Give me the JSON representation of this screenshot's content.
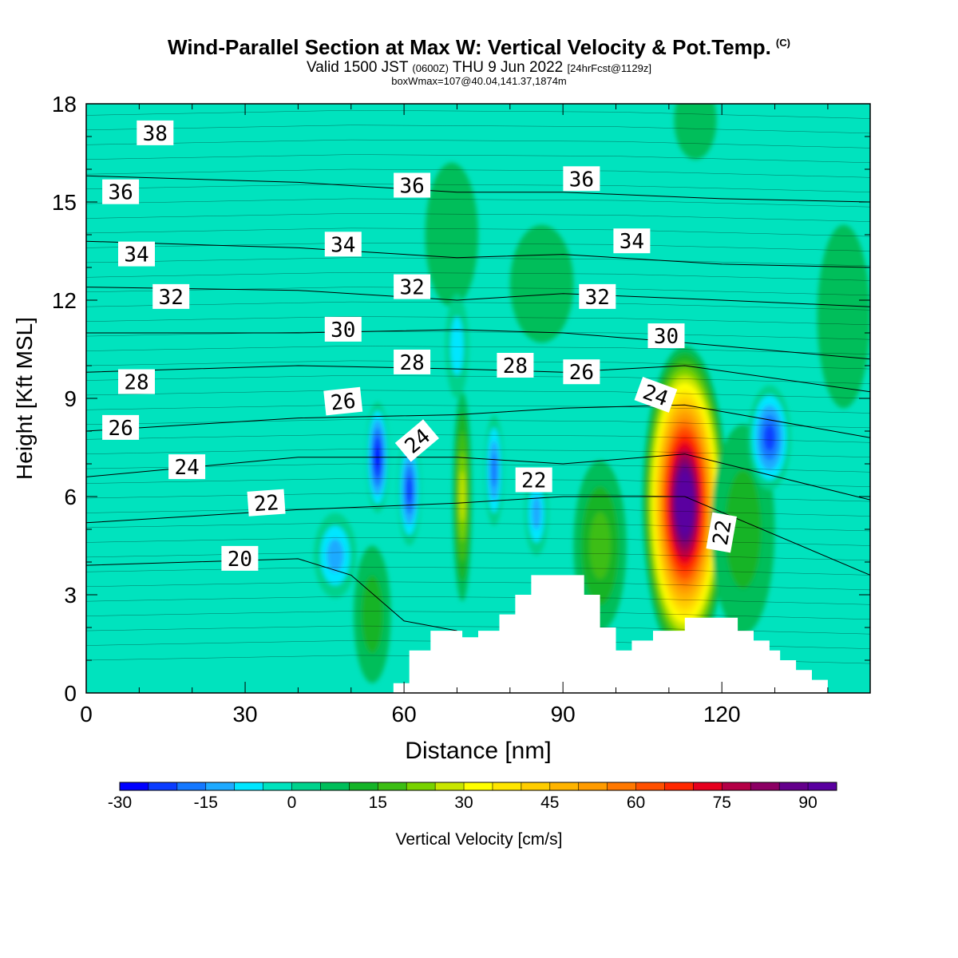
{
  "header": {
    "title": "Wind-Parallel Section at Max W: Vertical Velocity & Pot.Temp.",
    "copyright": "(C)",
    "valid_prefix": "Valid 1500 JST",
    "valid_utc": "(0600Z)",
    "valid_date": "THU 9 Jun 2022",
    "forecast": "[24hrFcst@1129z]",
    "boxmax": "boxWmax=107@40.04,141.37,1874m"
  },
  "colors": {
    "background": "#00e3be",
    "terrain": "#ffffff",
    "contour": "#000000"
  },
  "chart_data": {
    "type": "heatmap",
    "xlabel": "Distance [nm]",
    "ylabel": "Height [Kft MSL]",
    "xlim": [
      0,
      148
    ],
    "ylim": [
      0,
      18
    ],
    "x_ticks": [
      0,
      30,
      60,
      90,
      120
    ],
    "y_ticks": [
      0,
      3,
      6,
      9,
      12,
      15,
      18
    ],
    "colorbar": {
      "label": "Vertical Velocity [cm/s]",
      "tick_values": [
        -30,
        -15,
        0,
        15,
        30,
        45,
        60,
        75,
        90
      ],
      "min": -30,
      "max": 95,
      "step": 5,
      "colors": [
        "#0000ff",
        "#0a3cff",
        "#1478ff",
        "#1eaaff",
        "#00e6ff",
        "#00e3be",
        "#00d28c",
        "#00be5a",
        "#14b428",
        "#3cbe14",
        "#78d200",
        "#c8e600",
        "#ffff00",
        "#ffe600",
        "#ffcd00",
        "#ffb400",
        "#ff9b00",
        "#ff7800",
        "#ff5000",
        "#ff2800",
        "#e6001e",
        "#b40046",
        "#8c0064",
        "#64008c",
        "#5a00a0"
      ]
    },
    "terrain_profile": [
      [
        0,
        0
      ],
      [
        58,
        0
      ],
      [
        58,
        0.3
      ],
      [
        61,
        0.3
      ],
      [
        61,
        1.3
      ],
      [
        65,
        1.3
      ],
      [
        65,
        1.9
      ],
      [
        71,
        1.9
      ],
      [
        71,
        1.7
      ],
      [
        74,
        1.7
      ],
      [
        74,
        1.9
      ],
      [
        78,
        1.9
      ],
      [
        78,
        2.4
      ],
      [
        81,
        2.4
      ],
      [
        81,
        3.0
      ],
      [
        84,
        3.0
      ],
      [
        84,
        3.6
      ],
      [
        94,
        3.6
      ],
      [
        94,
        3.0
      ],
      [
        97,
        3.0
      ],
      [
        97,
        2.0
      ],
      [
        100,
        2.0
      ],
      [
        100,
        1.3
      ],
      [
        103,
        1.3
      ],
      [
        103,
        1.6
      ],
      [
        107,
        1.6
      ],
      [
        107,
        1.9
      ],
      [
        113,
        1.9
      ],
      [
        113,
        2.3
      ],
      [
        123,
        2.3
      ],
      [
        123,
        1.9
      ],
      [
        126,
        1.9
      ],
      [
        126,
        1.6
      ],
      [
        129,
        1.6
      ],
      [
        129,
        1.3
      ],
      [
        131,
        1.3
      ],
      [
        131,
        1.0
      ],
      [
        134,
        1.0
      ],
      [
        134,
        0.7
      ],
      [
        137,
        0.7
      ],
      [
        137,
        0.4
      ],
      [
        140,
        0.4
      ],
      [
        140,
        0.0
      ],
      [
        148,
        0
      ]
    ],
    "w_features": [
      {
        "x": 113,
        "y": 5.8,
        "rx": 8,
        "ry": 4.8,
        "value": 107
      },
      {
        "x": 71,
        "y": 6.0,
        "rx": 1.8,
        "ry": 3.2,
        "value": 25
      },
      {
        "x": 97,
        "y": 4.5,
        "rx": 5,
        "ry": 2.6,
        "value": 15
      },
      {
        "x": 54,
        "y": 2.4,
        "rx": 3.5,
        "ry": 2.1,
        "value": 13
      },
      {
        "x": 124,
        "y": 5.0,
        "rx": 6,
        "ry": 3.2,
        "value": 10
      },
      {
        "x": 86,
        "y": 12.5,
        "rx": 6,
        "ry": 1.8,
        "value": 5
      },
      {
        "x": 143,
        "y": 11.5,
        "rx": 5,
        "ry": 2.8,
        "value": 5
      },
      {
        "x": 69,
        "y": 14.0,
        "rx": 5,
        "ry": 2.2,
        "value": 5
      },
      {
        "x": 115,
        "y": 17.5,
        "rx": 4,
        "ry": 1.2,
        "value": 5
      },
      {
        "x": 55,
        "y": 7.2,
        "rx": 2.2,
        "ry": 1.7,
        "value": -25
      },
      {
        "x": 61,
        "y": 6.2,
        "rx": 2.2,
        "ry": 1.7,
        "value": -20
      },
      {
        "x": 77,
        "y": 6.8,
        "rx": 1.8,
        "ry": 1.7,
        "value": -18
      },
      {
        "x": 129,
        "y": 7.8,
        "rx": 4,
        "ry": 1.6,
        "value": -20
      },
      {
        "x": 47,
        "y": 4.2,
        "rx": 4,
        "ry": 1.3,
        "value": -12
      },
      {
        "x": 70,
        "y": 10.6,
        "rx": 2.2,
        "ry": 1.6,
        "value": -8
      },
      {
        "x": 85,
        "y": 5.5,
        "rx": 2.2,
        "ry": 1.3,
        "value": -10
      }
    ],
    "theta_contours": [
      {
        "values": [
          [
            0,
            15.8
          ],
          [
            40,
            15.6
          ],
          [
            70,
            15.3
          ],
          [
            90,
            15.3
          ],
          [
            120,
            15.1
          ],
          [
            148,
            15.0
          ]
        ],
        "label": "36"
      },
      {
        "values": [
          [
            0,
            13.8
          ],
          [
            40,
            13.6
          ],
          [
            70,
            13.3
          ],
          [
            90,
            13.4
          ],
          [
            120,
            13.1
          ],
          [
            148,
            13.0
          ]
        ],
        "label": "34"
      },
      {
        "values": [
          [
            0,
            12.4
          ],
          [
            40,
            12.3
          ],
          [
            70,
            12.0
          ],
          [
            90,
            12.2
          ],
          [
            120,
            12.0
          ],
          [
            148,
            11.8
          ]
        ],
        "label": "32"
      },
      {
        "values": [
          [
            0,
            11.0
          ],
          [
            40,
            11.0
          ],
          [
            70,
            11.1
          ],
          [
            90,
            11.0
          ],
          [
            113,
            10.7
          ],
          [
            148,
            10.2
          ]
        ],
        "label": "30"
      },
      {
        "values": [
          [
            0,
            9.8
          ],
          [
            40,
            10.0
          ],
          [
            70,
            9.9
          ],
          [
            90,
            9.8
          ],
          [
            113,
            10.0
          ],
          [
            148,
            9.2
          ]
        ],
        "label": "28"
      },
      {
        "values": [
          [
            0,
            8.0
          ],
          [
            40,
            8.4
          ],
          [
            70,
            8.5
          ],
          [
            90,
            8.7
          ],
          [
            113,
            8.8
          ],
          [
            148,
            7.8
          ]
        ],
        "label": "26"
      },
      {
        "values": [
          [
            0,
            6.6
          ],
          [
            40,
            7.2
          ],
          [
            70,
            7.2
          ],
          [
            90,
            7.0
          ],
          [
            113,
            7.3
          ],
          [
            148,
            5.9
          ]
        ],
        "label": "24"
      },
      {
        "values": [
          [
            0,
            5.2
          ],
          [
            40,
            5.6
          ],
          [
            70,
            5.8
          ],
          [
            90,
            6.0
          ],
          [
            113,
            6.0
          ],
          [
            148,
            3.6
          ]
        ],
        "label": "22"
      },
      {
        "values": [
          [
            0,
            3.9
          ],
          [
            40,
            4.1
          ],
          [
            50,
            3.6
          ],
          [
            60,
            2.2
          ],
          [
            70,
            1.9
          ]
        ],
        "label": "20"
      }
    ],
    "theta_labels": [
      {
        "text": "38",
        "x": 13,
        "y": 17.1,
        "rot": 0
      },
      {
        "text": "36",
        "x": 6.5,
        "y": 15.3,
        "rot": 0
      },
      {
        "text": "34",
        "x": 9.5,
        "y": 13.4,
        "rot": 0
      },
      {
        "text": "32",
        "x": 16,
        "y": 12.1,
        "rot": 0
      },
      {
        "text": "28",
        "x": 9.5,
        "y": 9.5,
        "rot": 0
      },
      {
        "text": "26",
        "x": 6.5,
        "y": 8.1,
        "rot": 0
      },
      {
        "text": "24",
        "x": 19,
        "y": 6.9,
        "rot": 0
      },
      {
        "text": "22",
        "x": 34,
        "y": 5.8,
        "rot": -4
      },
      {
        "text": "20",
        "x": 29,
        "y": 4.1,
        "rot": 0
      },
      {
        "text": "36",
        "x": 61.5,
        "y": 15.5,
        "rot": 0
      },
      {
        "text": "34",
        "x": 48.5,
        "y": 13.7,
        "rot": 0
      },
      {
        "text": "32",
        "x": 61.5,
        "y": 12.4,
        "rot": 0
      },
      {
        "text": "30",
        "x": 48.5,
        "y": 11.1,
        "rot": 0
      },
      {
        "text": "28",
        "x": 61.5,
        "y": 10.1,
        "rot": 0
      },
      {
        "text": "26",
        "x": 48.5,
        "y": 8.9,
        "rot": -6
      },
      {
        "text": "24",
        "x": 62.5,
        "y": 7.7,
        "rot": -40
      },
      {
        "text": "28",
        "x": 81,
        "y": 10.0,
        "rot": 0
      },
      {
        "text": "22",
        "x": 84.5,
        "y": 6.5,
        "rot": 0
      },
      {
        "text": "36",
        "x": 93.5,
        "y": 15.7,
        "rot": 0
      },
      {
        "text": "34",
        "x": 103,
        "y": 13.8,
        "rot": 0
      },
      {
        "text": "32",
        "x": 96.5,
        "y": 12.1,
        "rot": 0
      },
      {
        "text": "26",
        "x": 93.5,
        "y": 9.8,
        "rot": 0
      },
      {
        "text": "30",
        "x": 109.5,
        "y": 10.9,
        "rot": 0
      },
      {
        "text": "24",
        "x": 107.5,
        "y": 9.1,
        "rot": 20
      },
      {
        "text": "22",
        "x": 120,
        "y": 4.9,
        "rot": -80
      }
    ]
  }
}
